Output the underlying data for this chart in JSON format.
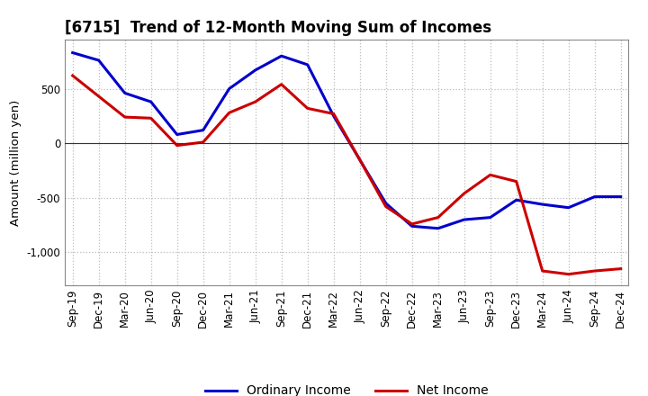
{
  "title": "[6715]  Trend of 12-Month Moving Sum of Incomes",
  "ylabel": "Amount (million yen)",
  "labels": [
    "Sep-19",
    "Dec-19",
    "Mar-20",
    "Jun-20",
    "Sep-20",
    "Dec-20",
    "Mar-21",
    "Jun-21",
    "Sep-21",
    "Dec-21",
    "Mar-22",
    "Jun-22",
    "Sep-22",
    "Dec-22",
    "Mar-23",
    "Jun-23",
    "Sep-23",
    "Dec-23",
    "Mar-24",
    "Jun-24",
    "Sep-24",
    "Dec-24"
  ],
  "ordinary_income": [
    830,
    760,
    460,
    380,
    80,
    120,
    500,
    670,
    800,
    720,
    250,
    -150,
    -550,
    -760,
    -780,
    -700,
    -680,
    -520,
    -560,
    -590,
    -490,
    -490
  ],
  "net_income": [
    620,
    430,
    240,
    230,
    -20,
    10,
    280,
    380,
    540,
    320,
    270,
    -150,
    -580,
    -740,
    -680,
    -460,
    -290,
    -350,
    -1170,
    -1200,
    -1170,
    -1150
  ],
  "ordinary_color": "#0000cc",
  "net_color": "#cc0000",
  "ylim_min": -1300,
  "ylim_max": 950,
  "yticks": [
    -1000,
    -500,
    0,
    500
  ],
  "background_color": "#ffffff",
  "grid_color": "#bbbbbb",
  "legend_entries": [
    "Ordinary Income",
    "Net Income"
  ],
  "title_fontsize": 12,
  "axis_fontsize": 8.5,
  "legend_fontsize": 10,
  "linewidth": 2.2
}
